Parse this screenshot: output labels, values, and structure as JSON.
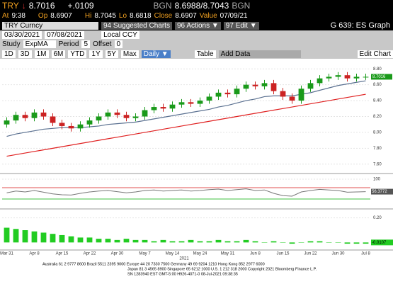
{
  "header": {
    "ticker": "TRY",
    "price": "8.7016",
    "change": "+.0109",
    "bid_src": "BGN",
    "bid_ask": "8.6988/8.7043",
    "ask_src": "BGN",
    "time_label": "At",
    "time": "9:38",
    "open_label": "Op",
    "open": "8.6907",
    "high_label": "Hi",
    "high": "8.7045",
    "low_label": "Lo",
    "low": "8.6818",
    "close_label": "Close",
    "close": "8.6907",
    "value_label": "Value",
    "value_date": "07/09/21"
  },
  "toolbar": {
    "security": "TRY Curncy",
    "suggested_num": "94",
    "suggested": "Suggested Charts",
    "actions_num": "96",
    "actions": "Actions ▼",
    "edit_num": "97",
    "edit": "Edit ▼",
    "function": "G 639: ES Graph",
    "start": "03/30/2021",
    "end": "07/08/2021",
    "currency": "Local CCY",
    "study_label": "Study",
    "study": "ExpMA",
    "period_label": "Period",
    "period": "5",
    "offset_label": "Offset",
    "offset": "0",
    "ranges": [
      "1D",
      "3D",
      "1M",
      "6M",
      "YTD",
      "1Y",
      "5Y",
      "Max"
    ],
    "frequency": "Daily ▼",
    "table": "Table",
    "add_data": "Add Data",
    "edit_chart": "Edit Chart"
  },
  "chart_data": {
    "type": "candlestick",
    "up_color": "#1a9a1a",
    "down_color": "#cc2222",
    "categories": [
      "Mar 31",
      null,
      null,
      "Apr 8",
      null,
      null,
      "Apr 15",
      null,
      null,
      "Apr 22",
      null,
      null,
      "Apr 30",
      null,
      null,
      "May 7",
      null,
      null,
      "May 14",
      null,
      null,
      "May 24",
      null,
      null,
      "May 31",
      null,
      null,
      "Jun 8",
      null,
      null,
      "Jun 15",
      null,
      null,
      "Jun 22",
      null,
      null,
      "Jun 30",
      null,
      null,
      "Jul 8"
    ],
    "open": [
      8.1,
      8.15,
      8.22,
      8.18,
      8.25,
      8.2,
      8.12,
      8.08,
      8.05,
      8.1,
      8.15,
      8.2,
      8.25,
      8.22,
      8.18,
      8.2,
      8.28,
      8.32,
      8.3,
      8.35,
      8.38,
      8.36,
      8.4,
      8.45,
      8.5,
      8.48,
      8.55,
      8.6,
      8.58,
      8.62,
      8.52,
      8.45,
      8.4,
      8.55,
      8.62,
      8.68,
      8.7,
      8.72,
      8.68,
      8.7
    ],
    "high": [
      8.19,
      8.26,
      8.26,
      8.29,
      8.29,
      8.24,
      8.16,
      8.12,
      8.14,
      8.19,
      8.24,
      8.29,
      8.29,
      8.26,
      8.24,
      8.32,
      8.36,
      8.36,
      8.39,
      8.42,
      8.42,
      8.44,
      8.49,
      8.54,
      8.54,
      8.59,
      8.64,
      8.64,
      8.66,
      8.66,
      8.56,
      8.49,
      8.59,
      8.66,
      8.72,
      8.74,
      8.76,
      8.76,
      8.74,
      8.74
    ],
    "low": [
      8.06,
      8.11,
      8.14,
      8.14,
      8.16,
      8.08,
      8.04,
      8.01,
      8.01,
      8.06,
      8.11,
      8.16,
      8.18,
      8.14,
      8.14,
      8.16,
      8.24,
      8.26,
      8.26,
      8.31,
      8.32,
      8.32,
      8.36,
      8.41,
      8.44,
      8.44,
      8.51,
      8.54,
      8.54,
      8.48,
      8.41,
      8.36,
      8.36,
      8.51,
      8.58,
      8.64,
      8.66,
      8.64,
      8.64,
      8.66
    ],
    "close": [
      8.15,
      8.22,
      8.18,
      8.25,
      8.2,
      8.12,
      8.08,
      8.05,
      8.1,
      8.15,
      8.2,
      8.25,
      8.22,
      8.18,
      8.2,
      8.28,
      8.32,
      8.3,
      8.35,
      8.38,
      8.36,
      8.4,
      8.45,
      8.5,
      8.48,
      8.55,
      8.6,
      8.58,
      8.62,
      8.52,
      8.45,
      8.4,
      8.55,
      8.62,
      8.68,
      8.7,
      8.72,
      8.68,
      8.7,
      8.7
    ],
    "lines": [
      {
        "color": "#5a7090",
        "values": [
          7.95,
          7.98,
          8.0,
          8.02,
          8.04,
          8.05,
          8.06,
          8.06,
          8.06,
          8.07,
          8.08,
          8.1,
          8.11,
          8.12,
          8.13,
          8.15,
          8.17,
          8.19,
          8.21,
          8.23,
          8.25,
          8.27,
          8.29,
          8.32,
          8.34,
          8.37,
          8.4,
          8.42,
          8.45,
          8.46,
          8.46,
          8.46,
          8.48,
          8.5,
          8.53,
          8.56,
          8.59,
          8.61,
          8.63,
          8.65
        ]
      },
      {
        "color": "#e02020",
        "values": [
          7.7,
          7.72,
          7.74,
          7.76,
          7.78,
          7.8,
          7.82,
          7.84,
          7.86,
          7.88,
          7.9,
          7.92,
          7.94,
          7.96,
          7.98,
          8.0,
          8.02,
          8.04,
          8.06,
          8.08,
          8.1,
          8.12,
          8.14,
          8.16,
          8.18,
          8.2,
          8.22,
          8.24,
          8.26,
          8.28,
          8.3,
          8.32,
          8.34,
          8.36,
          8.38,
          8.4,
          8.42,
          8.44,
          8.46,
          8.48
        ]
      }
    ],
    "ylim": [
      7.5,
      8.9
    ],
    "yticks": [
      {
        "value": 7.6,
        "label": "7.60"
      },
      {
        "value": 7.8,
        "label": "7.80"
      },
      {
        "value": 8.0,
        "label": "8.00"
      },
      {
        "value": 8.2,
        "label": "8.20"
      },
      {
        "value": 8.4,
        "label": "8.40"
      },
      {
        "value": 8.6,
        "label": "8.60"
      },
      {
        "value": 8.8,
        "label": "8.80"
      }
    ],
    "year_label": "2021",
    "oscillator": {
      "color": "#777777",
      "values": [
        52,
        58,
        55,
        60,
        54,
        48,
        45,
        44,
        50,
        55,
        58,
        60,
        56,
        52,
        55,
        60,
        62,
        58,
        60,
        62,
        58,
        60,
        63,
        65,
        60,
        63,
        66,
        60,
        62,
        50,
        42,
        40,
        55,
        60,
        64,
        62,
        60,
        54,
        55,
        56
      ],
      "ylim": [
        0,
        110
      ],
      "yticks": [
        100
      ],
      "levels": [
        {
          "value": 70,
          "color": "#e05050"
        },
        {
          "value": 30,
          "color": "#40c040"
        }
      ],
      "last": "56.3772"
    },
    "histogram": {
      "color": "#22cc22",
      "values": [
        0.12,
        0.11,
        0.1,
        0.09,
        0.08,
        0.07,
        0.06,
        0.05,
        0.04,
        0.04,
        0.03,
        0.03,
        0.02,
        0.03,
        0.02,
        0.02,
        0.01,
        0.02,
        0.01,
        0.01,
        0.02,
        0.01,
        0.01,
        0.02,
        0.01,
        0.01,
        0.02,
        0.01,
        0.0,
        0.01,
        0.0,
        -0.01,
        0.0,
        0.01,
        0.01,
        0.0,
        0.0,
        -0.01,
        -0.01,
        -0.01
      ],
      "ylim": [
        -0.05,
        0.25
      ],
      "yticks": [
        {
          "value": 0.2,
          "label": "0.20"
        }
      ],
      "last": "-0.0107"
    }
  },
  "footer": [
    "Australia 61 2 9777 8600 Brazil 5511 2395 9000 Europe 44 20 7330 7500 Germany 49 69 9204 1210 Hong Kong 852 2977 6000",
    "Japan 81 3 4565 8900 Singapore 65 6212 1000 U.S. 1 212 318 2000 Copyright 2021 Bloomberg Finance L.P.",
    "SN 1283940 EST GMT-5:00 H926-4071-0 08-Jul-2021 09:38:35"
  ]
}
